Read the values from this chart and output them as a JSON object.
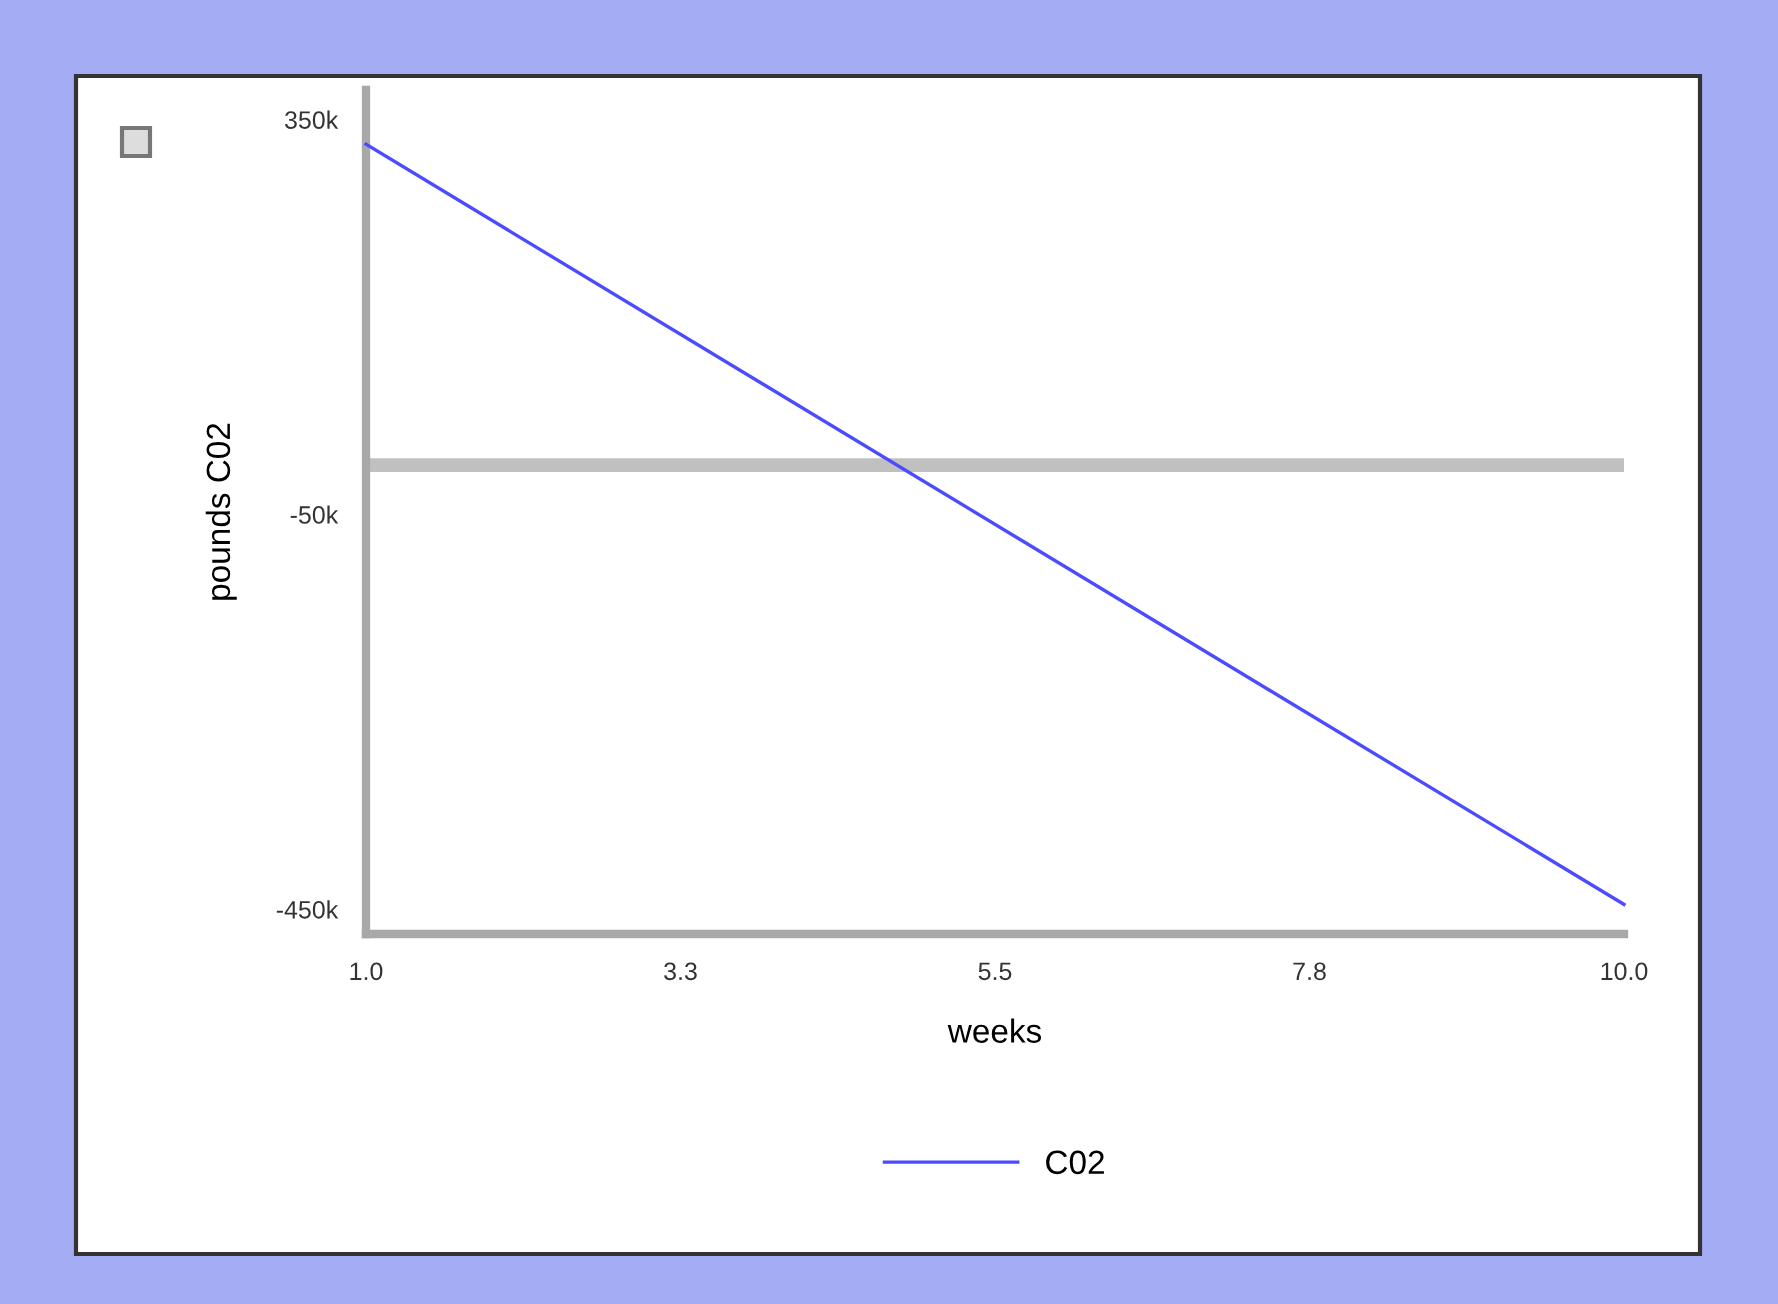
{
  "chart_data": {
    "type": "line",
    "xlabel": "weeks",
    "ylabel": "pounds C02",
    "x": [
      1.0,
      10.0
    ],
    "series": [
      {
        "name": "C02",
        "color": "#4b4bff",
        "values": [
          325000,
          -445000
        ]
      }
    ],
    "xlim": [
      1.0,
      10.0
    ],
    "xticks": [
      {
        "value": 1.0,
        "label": "1.0"
      },
      {
        "value": 3.25,
        "label": "3.3"
      },
      {
        "value": 5.5,
        "label": "5.5"
      },
      {
        "value": 7.75,
        "label": "7.8"
      },
      {
        "value": 10.0,
        "label": "10.0"
      }
    ],
    "ylim": [
      -475000,
      380000
    ],
    "yticks": [
      {
        "value": 350000,
        "label": "350k"
      },
      {
        "value": -50000,
        "label": "-50k"
      },
      {
        "value": -450000,
        "label": "-450k"
      }
    ],
    "ref_lines": [
      {
        "axis": "y",
        "value": 0,
        "color": "#c0c0c0"
      }
    ],
    "grid": false,
    "legend": "bottom",
    "marker": "none",
    "line_style": "solid"
  }
}
